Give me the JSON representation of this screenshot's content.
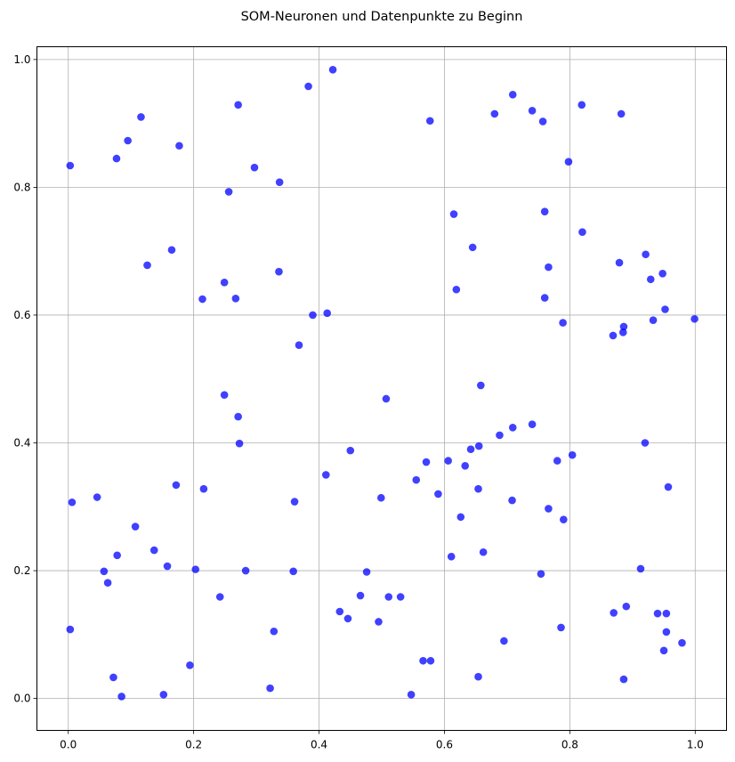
{
  "chart_data": {
    "type": "scatter",
    "title": "SOM-Neuronen und Datenpunkte zu Beginn",
    "xlabel": "",
    "ylabel": "",
    "xlim": [
      -0.05,
      1.05
    ],
    "ylim": [
      -0.05,
      1.02
    ],
    "xticks": [
      "0.0",
      "0.2",
      "0.4",
      "0.6",
      "0.8",
      "1.0"
    ],
    "yticks": [
      "0.0",
      "0.2",
      "0.4",
      "0.6",
      "0.8",
      "1.0"
    ],
    "grid": true,
    "point_color": "#0000ff",
    "point_opacity": 0.75,
    "points": [
      [
        0.003,
        0.834
      ],
      [
        0.077,
        0.845
      ],
      [
        0.095,
        0.873
      ],
      [
        0.116,
        0.91
      ],
      [
        0.177,
        0.865
      ],
      [
        0.271,
        0.929
      ],
      [
        0.297,
        0.831
      ],
      [
        0.337,
        0.808
      ],
      [
        0.383,
        0.958
      ],
      [
        0.422,
        0.984
      ],
      [
        0.256,
        0.793
      ],
      [
        0.126,
        0.678
      ],
      [
        0.165,
        0.702
      ],
      [
        0.214,
        0.625
      ],
      [
        0.249,
        0.651
      ],
      [
        0.267,
        0.626
      ],
      [
        0.336,
        0.668
      ],
      [
        0.39,
        0.6
      ],
      [
        0.413,
        0.603
      ],
      [
        0.368,
        0.553
      ],
      [
        0.577,
        0.904
      ],
      [
        0.68,
        0.915
      ],
      [
        0.709,
        0.945
      ],
      [
        0.74,
        0.92
      ],
      [
        0.757,
        0.903
      ],
      [
        0.819,
        0.929
      ],
      [
        0.882,
        0.915
      ],
      [
        0.798,
        0.84
      ],
      [
        0.615,
        0.758
      ],
      [
        0.76,
        0.762
      ],
      [
        0.82,
        0.73
      ],
      [
        0.645,
        0.706
      ],
      [
        0.766,
        0.675
      ],
      [
        0.619,
        0.64
      ],
      [
        0.76,
        0.627
      ],
      [
        0.879,
        0.682
      ],
      [
        0.921,
        0.695
      ],
      [
        0.929,
        0.656
      ],
      [
        0.948,
        0.665
      ],
      [
        0.952,
        0.609
      ],
      [
        0.999,
        0.594
      ],
      [
        0.933,
        0.592
      ],
      [
        0.886,
        0.582
      ],
      [
        0.885,
        0.573
      ],
      [
        0.869,
        0.568
      ],
      [
        0.789,
        0.588
      ],
      [
        0.249,
        0.475
      ],
      [
        0.271,
        0.441
      ],
      [
        0.273,
        0.399
      ],
      [
        0.172,
        0.334
      ],
      [
        0.216,
        0.328
      ],
      [
        0.046,
        0.315
      ],
      [
        0.006,
        0.307
      ],
      [
        0.361,
        0.308
      ],
      [
        0.411,
        0.35
      ],
      [
        0.45,
        0.388
      ],
      [
        0.507,
        0.469
      ],
      [
        0.499,
        0.314
      ],
      [
        0.555,
        0.342
      ],
      [
        0.571,
        0.37
      ],
      [
        0.59,
        0.32
      ],
      [
        0.606,
        0.372
      ],
      [
        0.633,
        0.364
      ],
      [
        0.642,
        0.39
      ],
      [
        0.655,
        0.395
      ],
      [
        0.658,
        0.49
      ],
      [
        0.688,
        0.412
      ],
      [
        0.709,
        0.424
      ],
      [
        0.74,
        0.429
      ],
      [
        0.78,
        0.372
      ],
      [
        0.804,
        0.381
      ],
      [
        0.92,
        0.4
      ],
      [
        0.957,
        0.331
      ],
      [
        0.654,
        0.328
      ],
      [
        0.626,
        0.284
      ],
      [
        0.708,
        0.31
      ],
      [
        0.766,
        0.297
      ],
      [
        0.79,
        0.28
      ],
      [
        0.107,
        0.269
      ],
      [
        0.137,
        0.232
      ],
      [
        0.078,
        0.224
      ],
      [
        0.158,
        0.207
      ],
      [
        0.203,
        0.202
      ],
      [
        0.283,
        0.2
      ],
      [
        0.359,
        0.199
      ],
      [
        0.057,
        0.199
      ],
      [
        0.063,
        0.181
      ],
      [
        0.476,
        0.198
      ],
      [
        0.611,
        0.222
      ],
      [
        0.662,
        0.229
      ],
      [
        0.754,
        0.195
      ],
      [
        0.913,
        0.203
      ],
      [
        0.242,
        0.159
      ],
      [
        0.466,
        0.161
      ],
      [
        0.511,
        0.159
      ],
      [
        0.53,
        0.159
      ],
      [
        0.433,
        0.136
      ],
      [
        0.446,
        0.125
      ],
      [
        0.495,
        0.12
      ],
      [
        0.328,
        0.105
      ],
      [
        0.003,
        0.108
      ],
      [
        0.87,
        0.134
      ],
      [
        0.89,
        0.144
      ],
      [
        0.94,
        0.133
      ],
      [
        0.954,
        0.133
      ],
      [
        0.786,
        0.111
      ],
      [
        0.954,
        0.104
      ],
      [
        0.979,
        0.087
      ],
      [
        0.95,
        0.075
      ],
      [
        0.695,
        0.09
      ],
      [
        0.566,
        0.059
      ],
      [
        0.578,
        0.059
      ],
      [
        0.654,
        0.034
      ],
      [
        0.886,
        0.03
      ],
      [
        0.194,
        0.052
      ],
      [
        0.072,
        0.033
      ],
      [
        0.085,
        0.003
      ],
      [
        0.152,
        0.006
      ],
      [
        0.322,
        0.016
      ],
      [
        0.547,
        0.006
      ]
    ]
  }
}
